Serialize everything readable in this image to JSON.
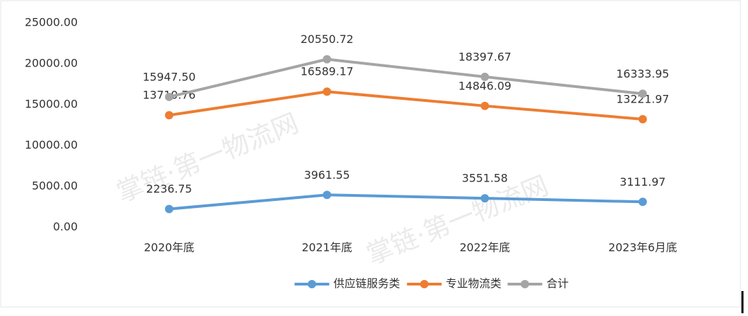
{
  "chart_data": {
    "type": "line",
    "categories": [
      "2020年底",
      "2021年底",
      "2022年底",
      "2023年6月底"
    ],
    "series": [
      {
        "name": "供应链服务类",
        "color": "#5b9bd5",
        "values": [
          2236.75,
          3961.55,
          3551.58,
          3111.97
        ],
        "value_labels": [
          "2236.75",
          "3961.55",
          "3551.58",
          "3111.97"
        ]
      },
      {
        "name": "专业物流类",
        "color": "#ed7d31",
        "values": [
          13710.76,
          16589.17,
          14846.09,
          13221.97
        ],
        "value_labels": [
          "13710.76",
          "16589.17",
          "14846.09",
          "13221.97"
        ]
      },
      {
        "name": "合计",
        "color": "#a5a5a5",
        "values": [
          15947.5,
          20550.72,
          18397.67,
          16333.95
        ],
        "value_labels": [
          "15947.50",
          "20550.72",
          "18397.67",
          "16333.95"
        ]
      }
    ],
    "ylim": [
      0,
      25000
    ],
    "yticks": [
      {
        "value": 0,
        "label": "0.00"
      },
      {
        "value": 5000,
        "label": "5000.00"
      },
      {
        "value": 10000,
        "label": "10000.00"
      },
      {
        "value": 15000,
        "label": "15000.00"
      },
      {
        "value": 20000,
        "label": "20000.00"
      },
      {
        "value": 25000,
        "label": "25000.00"
      }
    ],
    "grid": false,
    "legend": "bottom",
    "watermark": "掌链·第一物流网"
  }
}
